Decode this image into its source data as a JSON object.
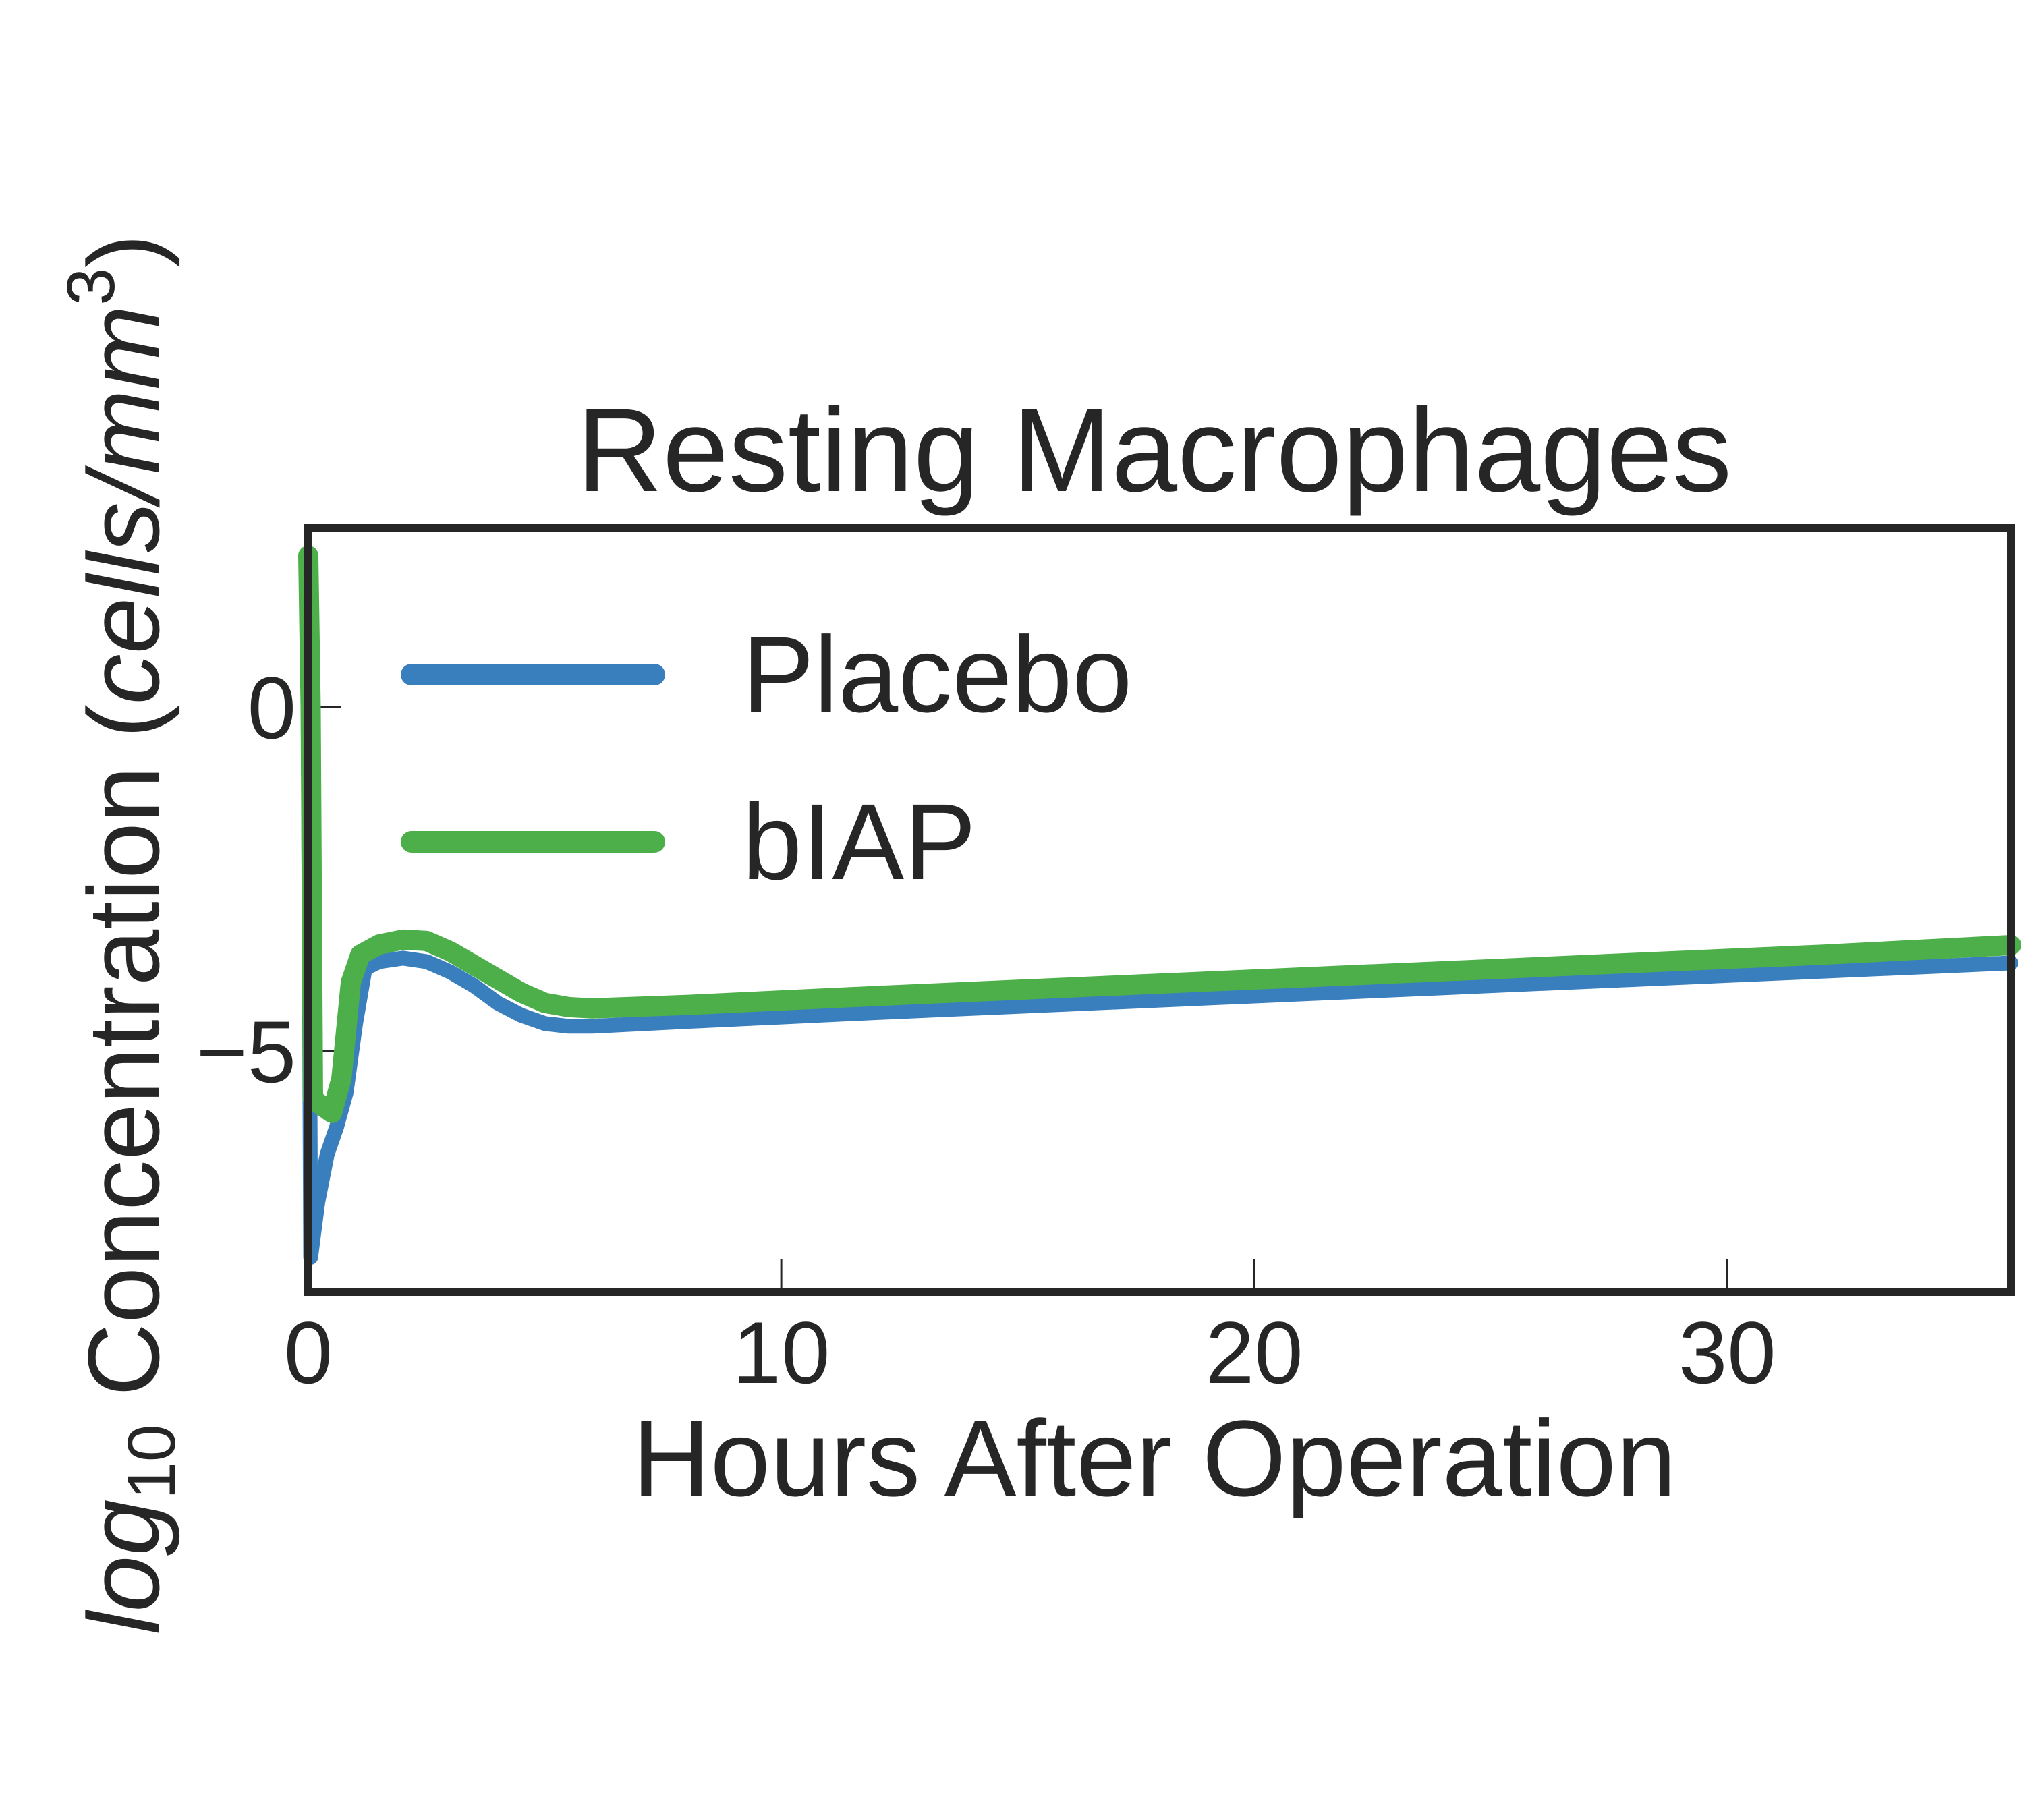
{
  "chart_data": {
    "type": "line",
    "title": "Resting Macrophages",
    "xlabel": "Hours After Operation",
    "ylabel": {
      "log": "log",
      "sub": "10",
      "mid": " Concentration (",
      "unit": "cells/mm",
      "sup": "3",
      "close": ")"
    },
    "xlim": [
      0,
      36
    ],
    "ylim": [
      -8.5,
      2.6
    ],
    "xticks": [
      0,
      10,
      20,
      30
    ],
    "xtick_labels": [
      "0",
      "10",
      "20",
      "30"
    ],
    "yticks": [
      0,
      -5
    ],
    "ytick_labels": [
      "0",
      "−5"
    ],
    "grid": false,
    "legend": "upper-left",
    "series": [
      {
        "name": "Placebo",
        "color": "#3a7fbd",
        "points": [
          [
            0,
            0.0
          ],
          [
            0.05,
            -8.0
          ],
          [
            0.2,
            -7.2
          ],
          [
            0.4,
            -6.5
          ],
          [
            0.6,
            -6.1
          ],
          [
            0.8,
            -5.6
          ],
          [
            1.0,
            -4.6
          ],
          [
            1.2,
            -3.8
          ],
          [
            1.5,
            -3.7
          ],
          [
            2.0,
            -3.65
          ],
          [
            2.5,
            -3.7
          ],
          [
            3.0,
            -3.85
          ],
          [
            3.5,
            -4.05
          ],
          [
            4.0,
            -4.3
          ],
          [
            4.5,
            -4.48
          ],
          [
            5.0,
            -4.6
          ],
          [
            5.5,
            -4.64
          ],
          [
            6.0,
            -4.64
          ],
          [
            8.0,
            -4.57
          ],
          [
            12.0,
            -4.44
          ],
          [
            16.0,
            -4.32
          ],
          [
            20.0,
            -4.2
          ],
          [
            24.0,
            -4.08
          ],
          [
            28.0,
            -3.96
          ],
          [
            32.0,
            -3.84
          ],
          [
            36.0,
            -3.72
          ]
        ]
      },
      {
        "name": "bIAP",
        "color": "#4daf4a",
        "points": [
          [
            0,
            2.2
          ],
          [
            0.05,
            0.0
          ],
          [
            0.1,
            -5.7
          ],
          [
            0.3,
            -5.8
          ],
          [
            0.5,
            -5.9
          ],
          [
            0.7,
            -5.4
          ],
          [
            0.9,
            -4.0
          ],
          [
            1.1,
            -3.6
          ],
          [
            1.5,
            -3.45
          ],
          [
            2.0,
            -3.38
          ],
          [
            2.5,
            -3.4
          ],
          [
            3.0,
            -3.55
          ],
          [
            3.5,
            -3.75
          ],
          [
            4.0,
            -3.95
          ],
          [
            4.5,
            -4.15
          ],
          [
            5.0,
            -4.3
          ],
          [
            5.5,
            -4.36
          ],
          [
            6.0,
            -4.38
          ],
          [
            8.0,
            -4.33
          ],
          [
            12.0,
            -4.2
          ],
          [
            16.0,
            -4.08
          ],
          [
            20.0,
            -3.96
          ],
          [
            24.0,
            -3.84
          ],
          [
            28.0,
            -3.72
          ],
          [
            32.0,
            -3.6
          ],
          [
            36.0,
            -3.46
          ]
        ]
      }
    ]
  }
}
